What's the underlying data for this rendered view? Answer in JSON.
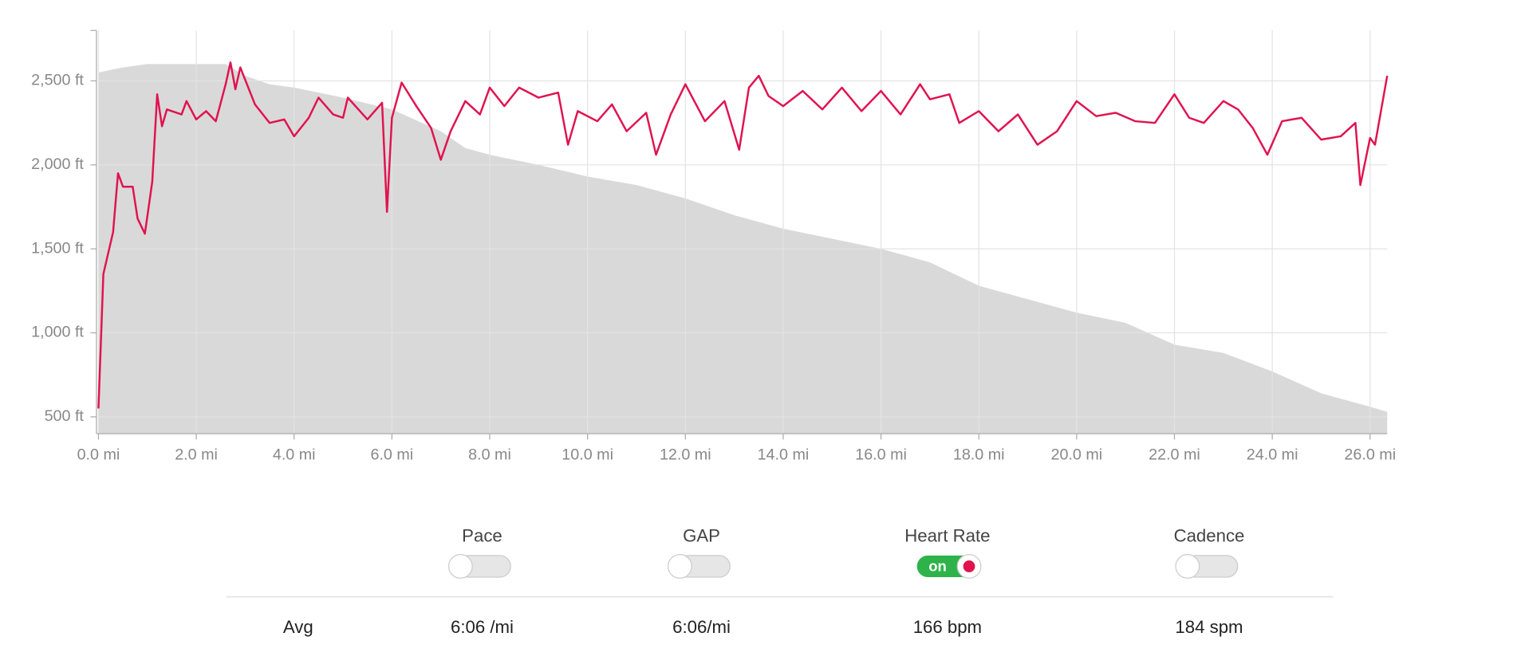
{
  "chart_data": {
    "type": "line",
    "xlim": [
      0,
      26.35
    ],
    "ylim": [
      400,
      2800
    ],
    "xticks": [
      {
        "value": 0,
        "label": "0.0 mi"
      },
      {
        "value": 2,
        "label": "2.0 mi"
      },
      {
        "value": 4,
        "label": "4.0 mi"
      },
      {
        "value": 6,
        "label": "6.0 mi"
      },
      {
        "value": 8,
        "label": "8.0 mi"
      },
      {
        "value": 10,
        "label": "10.0 mi"
      },
      {
        "value": 12,
        "label": "12.0 mi"
      },
      {
        "value": 14,
        "label": "14.0 mi"
      },
      {
        "value": 16,
        "label": "16.0 mi"
      },
      {
        "value": 18,
        "label": "18.0 mi"
      },
      {
        "value": 20,
        "label": "20.0 mi"
      },
      {
        "value": 22,
        "label": "22.0 mi"
      },
      {
        "value": 24,
        "label": "24.0 mi"
      },
      {
        "value": 26,
        "label": "26.0 mi"
      }
    ],
    "yticks": [
      {
        "value": 500,
        "label": "500 ft"
      },
      {
        "value": 1000,
        "label": "1,000 ft"
      },
      {
        "value": 1500,
        "label": "1,500 ft"
      },
      {
        "value": 2000,
        "label": "2,000 ft"
      },
      {
        "value": 2500,
        "label": "2,500 ft"
      }
    ],
    "grid": true,
    "series": [
      {
        "area": true,
        "color": "#d9d9d9",
        "x": [
          0,
          0.5,
          1,
          2,
          2.6,
          3,
          3.5,
          4,
          5,
          6,
          7,
          7.5,
          8,
          9,
          10,
          11,
          12,
          13,
          14,
          15,
          16,
          17,
          18,
          19,
          20,
          21,
          22,
          23,
          24,
          25,
          26,
          26.35
        ],
        "values": [
          2550,
          2580,
          2600,
          2600,
          2600,
          2530,
          2480,
          2460,
          2400,
          2330,
          2200,
          2100,
          2060,
          2000,
          1930,
          1880,
          1800,
          1700,
          1620,
          1560,
          1500,
          1420,
          1280,
          1200,
          1120,
          1060,
          930,
          880,
          770,
          640,
          560,
          530
        ]
      },
      {
        "color": "#e0134f",
        "x": [
          0,
          0.1,
          0.3,
          0.4,
          0.5,
          0.7,
          0.8,
          0.95,
          1.1,
          1.2,
          1.3,
          1.4,
          1.7,
          1.8,
          2,
          2.2,
          2.4,
          2.6,
          2.7,
          2.8,
          2.9,
          3.2,
          3.5,
          3.8,
          4,
          4.3,
          4.5,
          4.8,
          5,
          5.1,
          5.5,
          5.8,
          5.9,
          6.0,
          6.2,
          6.5,
          6.8,
          7.0,
          7.2,
          7.5,
          7.8,
          8,
          8.3,
          8.6,
          9,
          9.4,
          9.6,
          9.8,
          10.2,
          10.5,
          10.8,
          11.2,
          11.4,
          11.7,
          12,
          12.4,
          12.8,
          13.1,
          13.3,
          13.5,
          13.7,
          14,
          14.4,
          14.8,
          15.2,
          15.6,
          16,
          16.4,
          16.8,
          17,
          17.4,
          17.6,
          18,
          18.4,
          18.8,
          19.2,
          19.6,
          20,
          20.4,
          20.8,
          21.2,
          21.6,
          22,
          22.3,
          22.6,
          23,
          23.3,
          23.6,
          23.9,
          24.2,
          24.6,
          25,
          25.4,
          25.7,
          25.8,
          26.0,
          26.1,
          26.35
        ],
        "values": [
          550,
          1350,
          1600,
          1950,
          1870,
          1870,
          1680,
          1590,
          1900,
          2420,
          2230,
          2330,
          2300,
          2380,
          2270,
          2320,
          2260,
          2480,
          2610,
          2450,
          2580,
          2360,
          2250,
          2270,
          2170,
          2280,
          2400,
          2300,
          2280,
          2400,
          2270,
          2370,
          1720,
          2280,
          2490,
          2350,
          2220,
          2030,
          2200,
          2380,
          2300,
          2460,
          2350,
          2460,
          2400,
          2430,
          2120,
          2320,
          2260,
          2360,
          2200,
          2310,
          2060,
          2300,
          2480,
          2260,
          2380,
          2090,
          2460,
          2530,
          2410,
          2350,
          2440,
          2330,
          2460,
          2320,
          2440,
          2300,
          2480,
          2390,
          2420,
          2250,
          2320,
          2200,
          2300,
          2120,
          2200,
          2380,
          2290,
          2310,
          2260,
          2250,
          2420,
          2280,
          2250,
          2380,
          2330,
          2220,
          2060,
          2260,
          2280,
          2150,
          2170,
          2250,
          1880,
          2160,
          2120,
          2530
        ]
      }
    ]
  },
  "controls": [
    {
      "label": "Pace"
    },
    {
      "label": "GAP"
    },
    {
      "label": "Heart Rate",
      "state": "on"
    },
    {
      "label": "Cadence"
    }
  ],
  "stats": {
    "label": "Avg",
    "values": [
      "6:06 /mi",
      "6:06/mi",
      "166 bpm",
      "184 spm"
    ]
  }
}
